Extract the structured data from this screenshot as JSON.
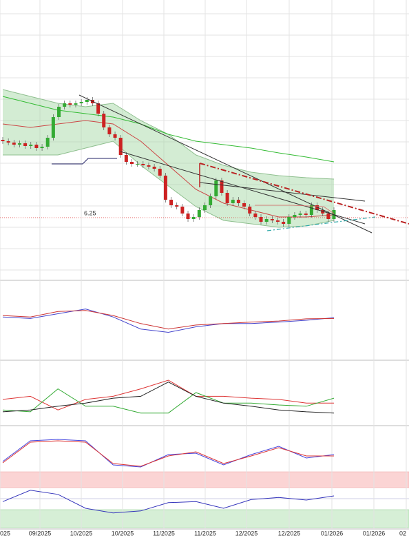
{
  "chart_data": {
    "type": "candlestick",
    "x_labels": [
      "025",
      "09/2025",
      "10/2025",
      "10/2025",
      "11/2025",
      "11/2025",
      "12/2025",
      "12/2025",
      "01/2026",
      "01/2026",
      "02"
    ],
    "price_level": {
      "value": 6.25,
      "label": "6.25"
    },
    "ylim": [
      5.36,
      9.41
    ],
    "open": [
      7.38,
      7.36,
      7.34,
      7.31,
      7.33,
      7.29,
      7.31,
      7.26,
      7.28,
      7.41,
      7.71,
      7.86,
      7.91,
      7.89,
      7.91,
      7.93,
      7.96,
      7.91,
      7.76,
      7.56,
      7.46,
      7.41,
      7.16,
      7.06,
      7.03,
      7.03,
      7.01,
      6.99,
      6.96,
      6.86,
      6.51,
      6.43,
      6.41,
      6.31,
      6.23,
      6.26,
      6.36,
      6.43,
      6.56,
      6.79,
      6.61,
      6.46,
      6.51,
      6.46,
      6.41,
      6.31,
      6.26,
      6.19,
      6.23,
      6.21,
      6.19,
      6.16,
      6.26,
      6.29,
      6.31,
      6.29,
      6.43,
      6.36,
      6.31,
      6.23
    ],
    "close": [
      7.36,
      7.34,
      7.31,
      7.33,
      7.29,
      7.31,
      7.26,
      7.28,
      7.41,
      7.71,
      7.86,
      7.91,
      7.89,
      7.91,
      7.93,
      7.96,
      7.91,
      7.76,
      7.56,
      7.46,
      7.41,
      7.16,
      7.06,
      7.03,
      7.03,
      7.01,
      6.99,
      6.96,
      6.86,
      6.51,
      6.43,
      6.41,
      6.31,
      6.23,
      6.26,
      6.36,
      6.43,
      6.56,
      6.79,
      6.61,
      6.46,
      6.51,
      6.46,
      6.41,
      6.31,
      6.26,
      6.19,
      6.23,
      6.21,
      6.19,
      6.16,
      6.26,
      6.29,
      6.31,
      6.29,
      6.43,
      6.36,
      6.31,
      6.23,
      6.36
    ],
    "up_color": "#33aa33",
    "down_color": "#cc2222",
    "overlays": [
      {
        "color": "#8fbf8f",
        "values": [
          8.11,
          8.01,
          7.91,
          7.86,
          7.91,
          7.66,
          7.46,
          7.16,
          7.01,
          6.91,
          6.86,
          6.83,
          6.81
        ]
      },
      {
        "color": "#8fbf8f",
        "values": [
          7.16,
          7.16,
          7.16,
          7.26,
          7.36,
          7.01,
          6.71,
          6.41,
          6.21,
          6.16,
          6.11,
          6.13,
          6.21
        ]
      },
      {
        "color": "#cc4444",
        "values": [
          7.61,
          7.56,
          7.61,
          7.66,
          7.61,
          7.36,
          7.01,
          6.66,
          6.46,
          6.36,
          6.26,
          6.26,
          6.29
        ]
      },
      {
        "color": "#33bb33",
        "values": [
          8.01,
          7.91,
          7.81,
          7.76,
          7.71,
          7.61,
          7.46,
          7.36,
          7.31,
          7.26,
          7.19,
          7.13,
          7.06
        ]
      }
    ],
    "panels": [
      {
        "ylim": [
          -1,
          1
        ],
        "series": [
          {
            "color": "#4444cc",
            "values": [
              0.09,
              0.05,
              0.18,
              0.31,
              0.09,
              -0.24,
              -0.33,
              -0.18,
              -0.09,
              -0.09,
              -0.05,
              0,
              0.07
            ]
          },
          {
            "color": "#cc3333",
            "values": [
              0.13,
              0.09,
              0.24,
              0.27,
              0.13,
              -0.09,
              -0.24,
              -0.13,
              -0.09,
              -0.05,
              -0.02,
              0.04,
              0.05
            ]
          }
        ]
      },
      {
        "ylim": [
          0,
          100
        ],
        "series": [
          {
            "color": "#dd3333",
            "values": [
              39,
              44,
              22,
              39,
              44,
              56,
              70,
              44,
              44,
              41,
              39,
              33,
              33
            ]
          },
          {
            "color": "#33aa33",
            "values": [
              22,
              19,
              56,
              28,
              28,
              17,
              17,
              50,
              33,
              33,
              30,
              28,
              41
            ]
          },
          {
            "color": "#222222",
            "values": [
              19,
              22,
              28,
              33,
              41,
              44,
              67,
              44,
              33,
              28,
              22,
              19,
              17
            ]
          }
        ]
      },
      {
        "ylim": [
          0,
          100
        ],
        "series": [
          {
            "color": "#4444dd",
            "values": [
              20,
              80,
              84,
              80,
              10,
              4,
              40,
              44,
              10,
              40,
              64,
              30,
              40
            ]
          },
          {
            "color": "#dd3333",
            "values": [
              16,
              76,
              80,
              76,
              14,
              6,
              36,
              48,
              14,
              36,
              60,
              36,
              36
            ]
          }
        ]
      },
      {
        "ylim": [
          0,
          100
        ],
        "series": [
          {
            "color": "#3333bb",
            "values": [
              49,
              71,
              63,
              36,
              27,
              31,
              47,
              49,
              36,
              53,
              57,
              52,
              60
            ]
          }
        ]
      }
    ]
  }
}
